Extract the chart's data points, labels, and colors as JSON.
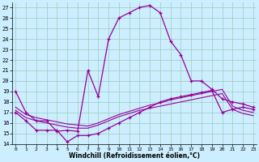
{
  "background_color": "#cceeff",
  "grid_color": "#99ccbb",
  "line_color": "#990099",
  "xlim": [
    -0.3,
    23.3
  ],
  "ylim": [
    14,
    27.5
  ],
  "yticks": [
    14,
    15,
    16,
    17,
    18,
    19,
    20,
    21,
    22,
    23,
    24,
    25,
    26,
    27
  ],
  "xticks": [
    0,
    1,
    2,
    3,
    4,
    5,
    6,
    7,
    8,
    9,
    10,
    11,
    12,
    13,
    14,
    15,
    16,
    17,
    18,
    19,
    20,
    21,
    22,
    23
  ],
  "xlabel": "Windchill (Refroidissement éolien,°C)",
  "line1_x": [
    0,
    1,
    2,
    3,
    4,
    5,
    6,
    7,
    8,
    9,
    10,
    11,
    12,
    13,
    14,
    15,
    16,
    17,
    18,
    19,
    20,
    21,
    22,
    23
  ],
  "line1_y": [
    19,
    17,
    16.2,
    16.2,
    15.2,
    15.3,
    15.2,
    21,
    18.5,
    24,
    26,
    26.5,
    27,
    27.2,
    26.5,
    23.8,
    22.5,
    20,
    20,
    19.2,
    18.3,
    18,
    17.8,
    17.5
  ],
  "line2_x": [
    0,
    1,
    2,
    3,
    4,
    5,
    6,
    7,
    8,
    9,
    10,
    11,
    12,
    13,
    14,
    15,
    16,
    17,
    18,
    19,
    20,
    21,
    22,
    23
  ],
  "line2_y": [
    17,
    16.2,
    15.3,
    15.3,
    15.3,
    14.2,
    14.8,
    14.8,
    15.0,
    15.5,
    16.0,
    16.5,
    17.0,
    17.5,
    18.0,
    18.3,
    18.5,
    18.7,
    18.9,
    19.1,
    17.0,
    17.3,
    17.5,
    17.3
  ],
  "line3_x": [
    0,
    1,
    2,
    3,
    4,
    5,
    6,
    7,
    8,
    9,
    10,
    11,
    12,
    13,
    14,
    15,
    16,
    17,
    18,
    19,
    20,
    21,
    22,
    23
  ],
  "line3_y": [
    17.5,
    16.8,
    16.5,
    16.3,
    16.1,
    15.9,
    15.8,
    15.7,
    16.0,
    16.4,
    16.8,
    17.1,
    17.4,
    17.7,
    17.9,
    18.2,
    18.4,
    18.6,
    18.8,
    19.0,
    19.2,
    17.6,
    17.2,
    17.0
  ],
  "line4_x": [
    0,
    1,
    2,
    3,
    4,
    5,
    6,
    7,
    8,
    9,
    10,
    11,
    12,
    13,
    14,
    15,
    16,
    17,
    18,
    19,
    20,
    21,
    22,
    23
  ],
  "line4_y": [
    17.2,
    16.5,
    16.2,
    16.0,
    15.8,
    15.6,
    15.5,
    15.5,
    15.8,
    16.2,
    16.6,
    16.9,
    17.2,
    17.4,
    17.6,
    17.8,
    18.0,
    18.2,
    18.4,
    18.6,
    18.8,
    17.3,
    16.9,
    16.7
  ]
}
